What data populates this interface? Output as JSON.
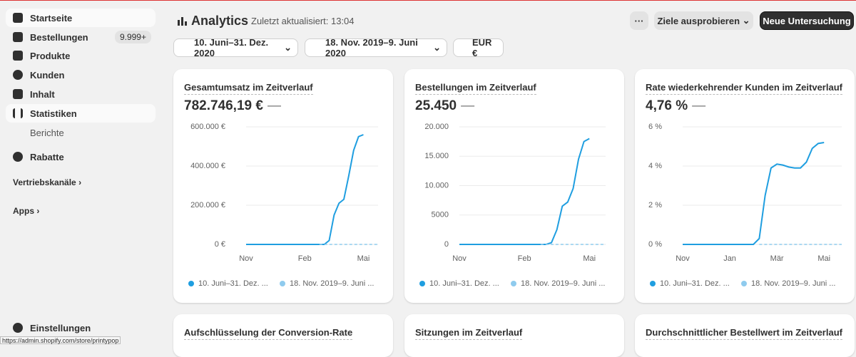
{
  "sidebar": {
    "items": [
      "Startseite",
      "Bestellungen",
      "Produkte",
      "Kunden",
      "Inhalt",
      "Statistiken"
    ],
    "badge": "9.999+",
    "subitem": "Berichte",
    "rabatte": "Rabatte",
    "sales_channels": "Vertriebskanäle",
    "apps": "Apps",
    "settings": "Einstellungen"
  },
  "status_url": "https://admin.shopify.com/store/printypop",
  "header": {
    "title": "Analytics",
    "updated": "Zuletzt aktualisiert: 13:04",
    "more": "···",
    "try_goals": "Ziele ausprobieren",
    "new_study": "Neue Untersuchung"
  },
  "filters": [
    "10. Juni–31. Dez. 2020",
    "18. Nov. 2019–9. Juni 2020",
    "EUR €"
  ],
  "chart_data": [
    {
      "type": "line",
      "title": "Gesamtumsatz im Zeitverlauf",
      "total": "782.746,19 €",
      "change": "—",
      "categories": [
        "Nov",
        null,
        null,
        null,
        null,
        null,
        null,
        null,
        null,
        null,
        null,
        null,
        "Feb",
        null,
        null,
        null,
        null,
        null,
        null,
        null,
        null,
        null,
        null,
        null,
        "Mai",
        null,
        null,
        null
      ],
      "ylim": [
        0,
        600000
      ],
      "yticks": [
        {
          "value": 0,
          "label": "0 €"
        },
        {
          "value": 200000,
          "label": "200.000 €"
        },
        {
          "value": 400000,
          "label": "400.000 €"
        },
        {
          "value": 600000,
          "label": "600.000 €"
        }
      ],
      "grid": true,
      "series": [
        {
          "name": "10. Juni–31. Dez. ...",
          "color": "#1f9ee0",
          "dashed": false,
          "values": [
            0,
            0,
            0,
            0,
            0,
            0,
            0,
            0,
            0,
            0,
            0,
            0,
            0,
            0,
            0,
            0,
            0,
            20000,
            150000,
            210000,
            230000,
            350000,
            480000,
            550000,
            560000,
            null,
            null,
            null
          ]
        },
        {
          "name": "18. Nov. 2019–9. Juni ...",
          "color": "#8fcbee",
          "dashed": true,
          "values": [
            null,
            null,
            null,
            null,
            null,
            null,
            null,
            null,
            null,
            null,
            null,
            null,
            null,
            null,
            null,
            0,
            0,
            0,
            0,
            0,
            0,
            0,
            0,
            0,
            0,
            0,
            0,
            0
          ]
        }
      ]
    },
    {
      "type": "line",
      "title": "Bestellungen im Zeitverlauf",
      "total": "25.450",
      "change": "—",
      "categories": [
        "Nov",
        null,
        null,
        null,
        null,
        null,
        null,
        null,
        null,
        null,
        null,
        null,
        "Feb",
        null,
        null,
        null,
        null,
        null,
        null,
        null,
        null,
        null,
        null,
        null,
        "Mai",
        null,
        null,
        null
      ],
      "ylim": [
        0,
        20000
      ],
      "yticks": [
        0,
        5000,
        {
          "value": 10000,
          "label": "10.000"
        },
        {
          "value": 15000,
          "label": "15.000"
        },
        {
          "value": 20000,
          "label": "20.000"
        }
      ],
      "grid": true,
      "series": [
        {
          "name": "10. Juni–31. Dez. ...",
          "color": "#1f9ee0",
          "dashed": false,
          "values": [
            0,
            0,
            0,
            0,
            0,
            0,
            0,
            0,
            0,
            0,
            0,
            0,
            0,
            0,
            0,
            0,
            0,
            300,
            2500,
            6500,
            7200,
            9500,
            14500,
            17500,
            18000,
            null,
            null,
            null
          ]
        },
        {
          "name": "18. Nov. 2019–9. Juni ...",
          "color": "#8fcbee",
          "dashed": true,
          "values": [
            null,
            null,
            null,
            null,
            null,
            null,
            null,
            null,
            null,
            null,
            null,
            null,
            null,
            null,
            null,
            0,
            0,
            0,
            0,
            0,
            0,
            0,
            0,
            0,
            0,
            0,
            0,
            0
          ]
        }
      ]
    },
    {
      "type": "line",
      "title": "Rate wiederkehrender Kunden im Zeitverlauf",
      "total": "4,76 %",
      "change": "—",
      "categories": [
        "Nov",
        null,
        null,
        null,
        null,
        null,
        null,
        null,
        "Jan",
        null,
        null,
        null,
        null,
        null,
        null,
        null,
        "Mär",
        null,
        null,
        null,
        null,
        null,
        null,
        null,
        "Mai",
        null,
        null,
        null
      ],
      "ylim": [
        0,
        6
      ],
      "yticks": [
        {
          "value": 0,
          "label": "0 %"
        },
        {
          "value": 2,
          "label": "2 %"
        },
        {
          "value": 4,
          "label": "4 %"
        },
        {
          "value": 6,
          "label": "6 %"
        }
      ],
      "grid": true,
      "series": [
        {
          "name": "10. Juni–31. Dez. ...",
          "color": "#1f9ee0",
          "dashed": false,
          "values": [
            0,
            0,
            0,
            0,
            0,
            0,
            0,
            0,
            0,
            0,
            0,
            0,
            0,
            0.3,
            2.5,
            3.9,
            4.1,
            4.05,
            3.95,
            3.9,
            3.9,
            4.2,
            4.9,
            5.15,
            5.2,
            null,
            null,
            null
          ]
        },
        {
          "name": "18. Nov. 2019–9. Juni ...",
          "color": "#8fcbee",
          "dashed": true,
          "values": [
            null,
            null,
            null,
            null,
            null,
            null,
            null,
            null,
            null,
            null,
            null,
            null,
            null,
            0,
            0,
            0,
            0,
            0,
            0,
            0,
            0,
            0,
            0,
            0,
            0,
            0,
            0,
            0
          ]
        }
      ]
    }
  ],
  "lower_cards": [
    "Aufschlüsselung der Conversion-Rate",
    "Sitzungen im Zeitverlauf",
    "Durchschnittlicher Bestellwert im Zeitverlauf"
  ]
}
